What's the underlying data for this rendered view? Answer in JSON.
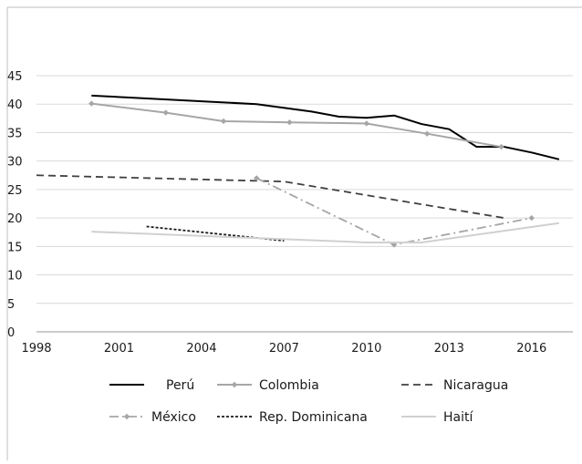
{
  "chart_data": {
    "type": "line",
    "title": "",
    "xlabel": "",
    "ylabel": "",
    "xlim": [
      1998,
      2017.5
    ],
    "ylim": [
      0,
      45
    ],
    "x_ticks": [
      1998,
      2001,
      2004,
      2007,
      2010,
      2013,
      2016
    ],
    "y_ticks": [
      0,
      5,
      10,
      15,
      20,
      25,
      30,
      35,
      40,
      45
    ],
    "grid": true,
    "legend_position": "bottom",
    "series": [
      {
        "name": "Perú",
        "color": "#000000",
        "dash": "solid",
        "marker": "none",
        "points": [
          [
            2000,
            41.5
          ],
          [
            2006,
            40.0
          ],
          [
            2008,
            38.7
          ],
          [
            2009,
            37.8
          ],
          [
            2010,
            37.6
          ],
          [
            2011,
            38.0
          ],
          [
            2012,
            36.5
          ],
          [
            2013,
            35.6
          ],
          [
            2014,
            32.5
          ],
          [
            2015,
            32.5
          ],
          [
            2016,
            31.5
          ],
          [
            2017,
            30.3
          ]
        ]
      },
      {
        "name": "Colombia",
        "color": "#a6a6a6",
        "dash": "solid",
        "marker": "diamond",
        "points": [
          [
            2000,
            40.1
          ],
          [
            2002.7,
            38.5
          ],
          [
            2004.8,
            37.0
          ],
          [
            2007.2,
            36.8
          ],
          [
            2010,
            36.6
          ],
          [
            2012.2,
            34.8
          ],
          [
            2014.9,
            32.5
          ]
        ]
      },
      {
        "name": "Nicaragua",
        "color": "#404040",
        "dash": "dashed",
        "marker": "none",
        "points": [
          [
            1998,
            27.5
          ],
          [
            2007,
            26.4
          ],
          [
            2015,
            20.0
          ]
        ]
      },
      {
        "name": "México",
        "color": "#a6a6a6",
        "dash": "dashdot",
        "marker": "diamond",
        "points": [
          [
            2006,
            27.0
          ],
          [
            2011,
            15.3
          ],
          [
            2016,
            20.0
          ]
        ]
      },
      {
        "name": "Rep. Dominicana",
        "color": "#1a1a1a",
        "dash": "dotted",
        "marker": "none",
        "points": [
          [
            2002,
            18.5
          ],
          [
            2007,
            16.0
          ]
        ]
      },
      {
        "name": "Haití",
        "color": "#d0d0d0",
        "dash": "solid",
        "marker": "none",
        "points": [
          [
            2000,
            17.6
          ],
          [
            2010,
            15.7
          ],
          [
            2012,
            15.7
          ],
          [
            2017,
            19.1
          ]
        ]
      }
    ]
  }
}
